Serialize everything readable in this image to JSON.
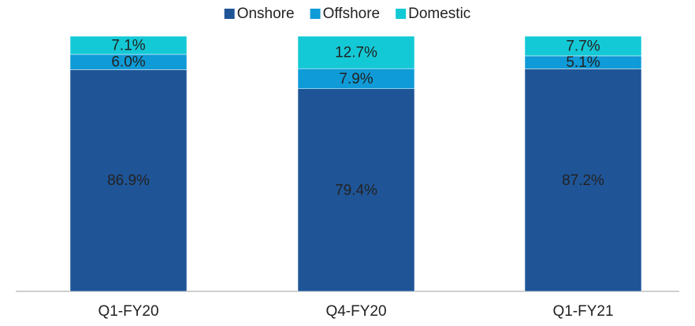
{
  "chart_data": {
    "type": "stacked_bar",
    "categories": [
      "Q1-FY20",
      "Q4-FY20",
      "Q1-FY21"
    ],
    "series": [
      {
        "name": "Onshore",
        "color": "#1f5597",
        "values": [
          86.9,
          79.4,
          87.2
        ],
        "value_labels": [
          "86.9%",
          "79.4%",
          "87.2%"
        ]
      },
      {
        "name": "Offshore",
        "color": "#0f9bd7",
        "values": [
          6.0,
          7.9,
          5.1
        ],
        "value_labels": [
          "6.0%",
          "7.9%",
          "5.1%"
        ]
      },
      {
        "name": "Domestic",
        "color": "#14c9d6",
        "values": [
          7.1,
          12.7,
          7.7
        ],
        "value_labels": [
          "7.1%",
          "12.7%",
          "7.7%"
        ]
      }
    ],
    "legend": "top"
  }
}
